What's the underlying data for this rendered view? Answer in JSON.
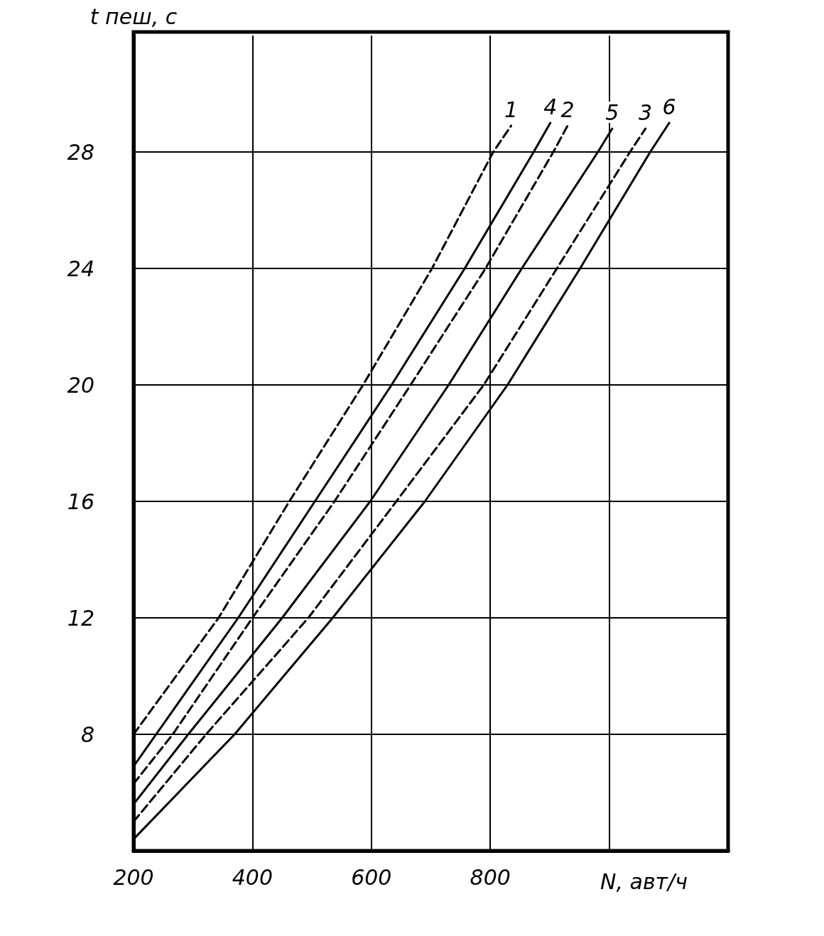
{
  "chart_data": {
    "type": "line",
    "xlabel": "N, авт/ч",
    "ylabel": "t пеш, с",
    "xlim": [
      200,
      1200
    ],
    "ylim": [
      4,
      32
    ],
    "xticks": [
      200,
      400,
      600,
      800,
      {
        "value": 1000,
        "label": null
      }
    ],
    "yticks": [
      8,
      12,
      16,
      20,
      24,
      28
    ],
    "grid": true,
    "legend": false,
    "marker": "none",
    "series": [
      {
        "name": "1",
        "color": "#000000",
        "line_style": "dashed",
        "x": [
          200,
          343,
          462,
          586,
          702,
          805,
          835
        ],
        "values": [
          8,
          12,
          16,
          20,
          24,
          28,
          28.9
        ]
      },
      {
        "name": "4",
        "color": "#000000",
        "line_style": "solid",
        "x": [
          200,
          238,
          376,
          505,
          634,
          757,
          873,
          901
        ],
        "values": [
          6.9,
          8,
          12,
          16,
          20,
          24,
          28,
          29
        ]
      },
      {
        "name": "2",
        "color": "#000000",
        "line_style": "dashed",
        "x": [
          200,
          266,
          400,
          538,
          666,
          792,
          906,
          930
        ],
        "values": [
          6.3,
          8,
          12,
          16,
          20,
          24,
          28,
          28.9
        ]
      },
      {
        "name": "5",
        "color": "#000000",
        "line_style": "solid",
        "x": [
          200,
          292,
          450,
          598,
          730,
          853,
          981,
          1005
        ],
        "values": [
          5.6,
          8,
          12,
          16,
          20,
          24,
          28,
          28.8
        ]
      },
      {
        "name": "3",
        "color": "#000000",
        "line_style": "dashed",
        "x": [
          200,
          322,
          494,
          642,
          789,
          912,
          1035,
          1061
        ],
        "values": [
          5,
          8,
          12,
          16,
          20,
          24,
          28,
          28.8
        ]
      },
      {
        "name": "6",
        "color": "#000000",
        "line_style": "solid",
        "x": [
          200,
          370,
          535,
          690,
          829,
          951,
          1069,
          1101
        ],
        "values": [
          4.4,
          8,
          12,
          16,
          20,
          24,
          28,
          29
        ]
      }
    ]
  }
}
